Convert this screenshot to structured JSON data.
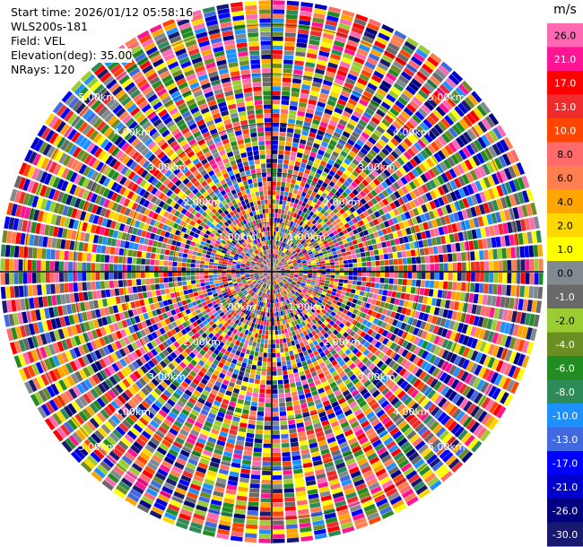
{
  "header": {
    "start_time": "Start time: 2026/01/12 05:58:16",
    "site": "WLS200s-181",
    "field": "Field: VEL",
    "elevation": "Elevation(deg): 35.00",
    "nrays": "NRays: 120"
  },
  "chart_data": {
    "type": "ppi-polar-heatmap",
    "field": "VEL",
    "units": "m/s",
    "nrays": 120,
    "elevation_deg": 35.0,
    "range_rings_km": [
      1,
      2,
      3,
      4,
      5
    ],
    "range_ring_labels": [
      "1.00km",
      "2.00km",
      "3.00km",
      "4.00km",
      "5.00km"
    ],
    "max_range_km": 5.5,
    "colorbar": {
      "ticks": [
        "26.0",
        "21.0",
        "17.0",
        "13.0",
        "10.0",
        "8.0",
        "6.0",
        "4.0",
        "2.0",
        "1.0",
        "0.0",
        "-1.0",
        "-2.0",
        "-4.0",
        "-6.0",
        "-8.0",
        "-10.0",
        "-13.0",
        "-17.0",
        "-21.0",
        "-26.0",
        "-30.0"
      ],
      "colors": [
        "#ff69b4",
        "#ff1493",
        "#ff0000",
        "#ee2c2c",
        "#ff4500",
        "#ff6a6a",
        "#ff7f50",
        "#ffa500",
        "#ffd700",
        "#ffff00",
        "#808a90",
        "#696969",
        "#9acd32",
        "#6b8e23",
        "#228b22",
        "#2e8b57",
        "#1e90ff",
        "#4169e1",
        "#0000ff",
        "#0000cd",
        "#000080",
        "#191970"
      ]
    }
  }
}
